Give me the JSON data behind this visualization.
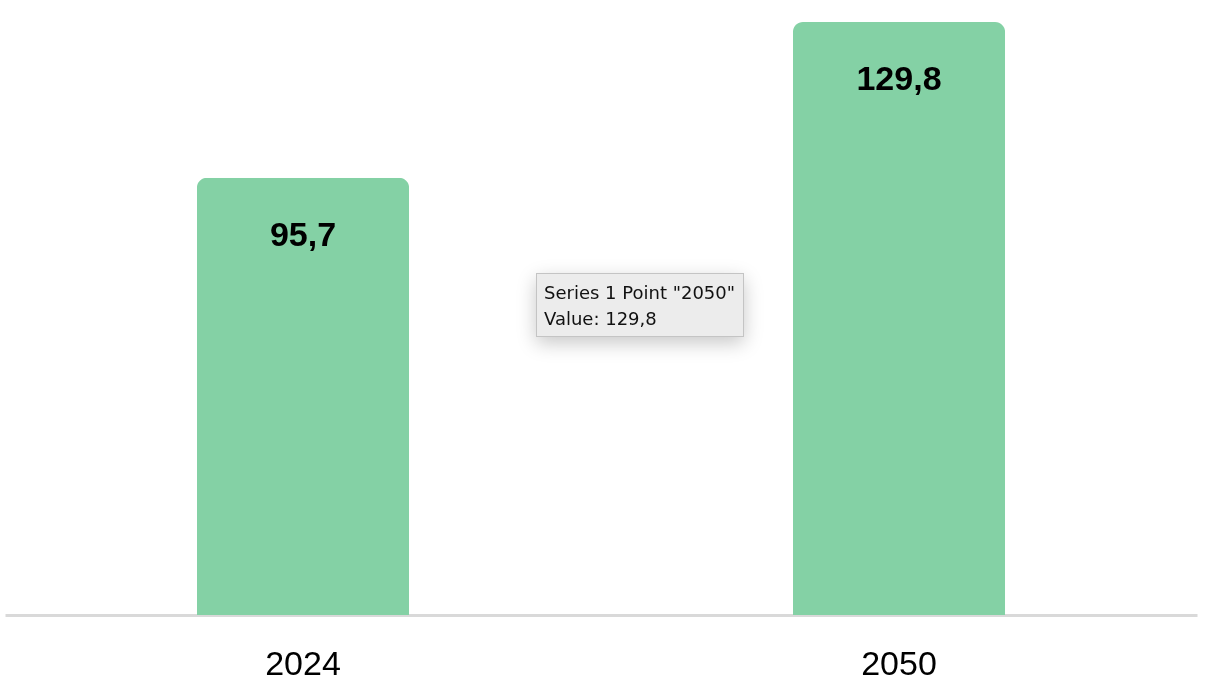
{
  "chart_data": {
    "type": "bar",
    "categories": [
      "2024",
      "2050"
    ],
    "values": [
      95.7,
      129.8
    ],
    "value_labels": [
      "95,7",
      "129,8"
    ],
    "color": "#84d1a5",
    "annotations": [
      "Series 1 Point \"2050\"",
      "Value: 129,8"
    ]
  }
}
